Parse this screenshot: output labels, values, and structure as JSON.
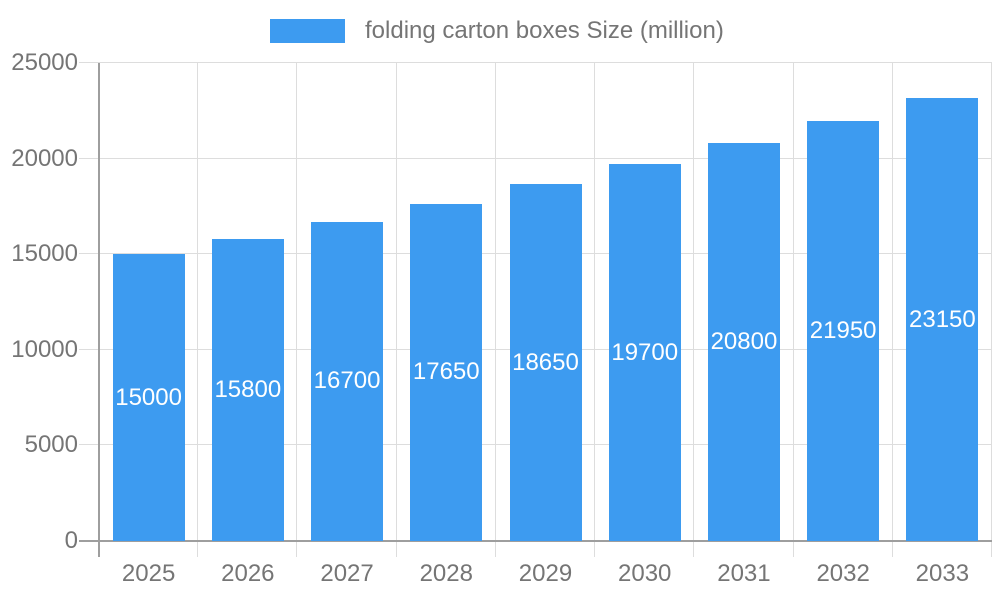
{
  "chart_data": {
    "type": "bar",
    "title": "",
    "legend": {
      "label": "folding carton boxes Size (million)",
      "position": "top-center"
    },
    "categories": [
      "2025",
      "2026",
      "2027",
      "2028",
      "2029",
      "2030",
      "2031",
      "2032",
      "2033"
    ],
    "values": [
      15000,
      15800,
      16700,
      17650,
      18650,
      19700,
      20800,
      21950,
      23150
    ],
    "bar_labels": [
      "15000",
      "15800",
      "16700",
      "17650",
      "18650",
      "19700",
      "20800",
      "21950",
      "23150"
    ],
    "xlabel": "",
    "ylabel": "",
    "ylim": [
      0,
      25000
    ],
    "yticks": [
      0,
      5000,
      10000,
      15000,
      20000,
      25000
    ],
    "ytick_labels": [
      "0",
      "5000",
      "10000",
      "15000",
      "20000",
      "25000"
    ],
    "grid": true,
    "colors": {
      "bar": "#3D9BF0",
      "bar_label_text": "#FFFFFF",
      "axis_line": "#9E9E9E",
      "grid_line": "#DDDDDD",
      "label_text": "#757575",
      "background": "#FFFFFF"
    }
  }
}
